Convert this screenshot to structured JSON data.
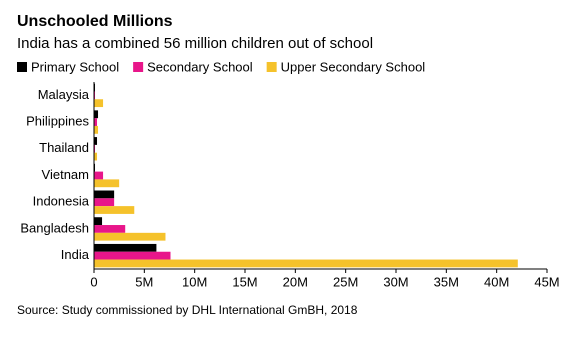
{
  "chart_data": {
    "type": "hbar",
    "title": "Unschooled Millions",
    "subtitle": "India has a combined 56 million children out of school",
    "source": "Source: Study commissioned by DHL International GmBH, 2018",
    "categories": [
      "Malaysia",
      "Philippines",
      "Thailand",
      "Vietnam",
      "Indonesia",
      "Bangladesh",
      "India"
    ],
    "series": [
      {
        "name": "Primary School",
        "color": "#000000",
        "values": [
          0.1,
          0.4,
          0.3,
          0.1,
          2.0,
          0.8,
          6.2
        ]
      },
      {
        "name": "Secondary School",
        "color": "#e8168a",
        "values": [
          0.1,
          0.3,
          0.1,
          0.9,
          2.0,
          3.1,
          7.6
        ]
      },
      {
        "name": "Upper Secondary School",
        "color": "#f5c22b",
        "values": [
          0.9,
          0.4,
          0.3,
          2.5,
          4.0,
          7.1,
          42.1
        ]
      }
    ],
    "xlim": [
      0,
      45
    ],
    "xticks": [
      0,
      {
        "value": 5,
        "label": "5M"
      },
      {
        "value": 10,
        "label": "10M"
      },
      {
        "value": 15,
        "label": "15M"
      },
      {
        "value": 20,
        "label": "20M"
      },
      {
        "value": 25,
        "label": "25M"
      },
      {
        "value": 30,
        "label": "30M"
      },
      {
        "value": 35,
        "label": "35M"
      },
      {
        "value": 40,
        "label": "40M"
      },
      {
        "value": 45,
        "label": "45M"
      }
    ],
    "legend": "top-left"
  }
}
